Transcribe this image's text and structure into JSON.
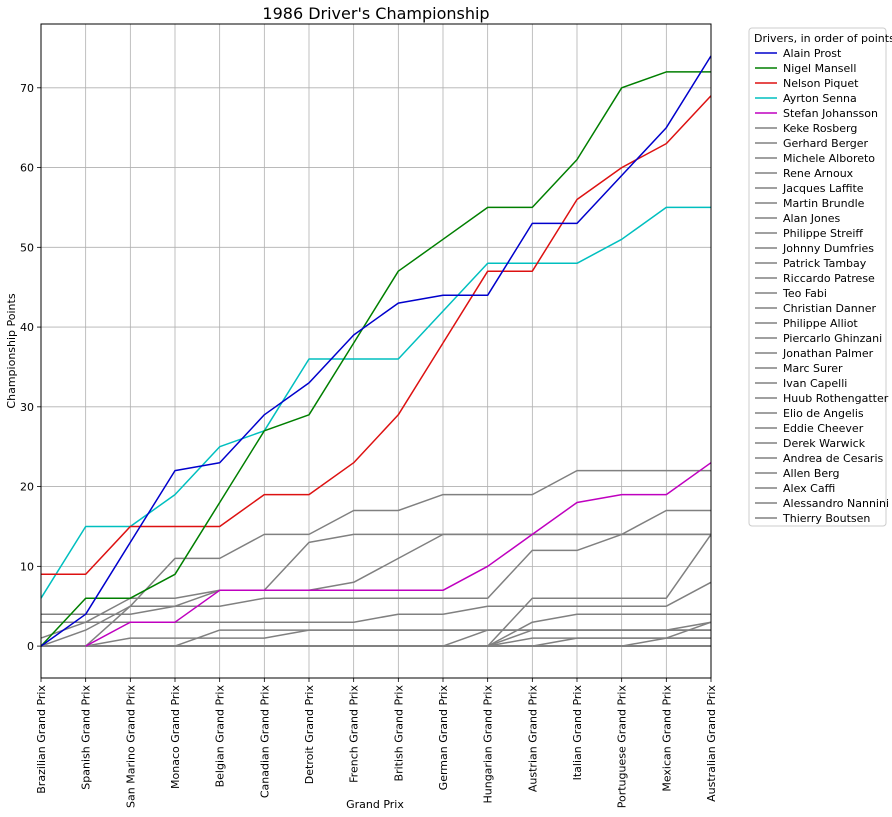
{
  "chart_data": {
    "type": "line",
    "title": "1986 Driver's Championship",
    "xlabel": "Grand Prix",
    "ylabel": "Championship Points",
    "ylim": [
      -4,
      78
    ],
    "yticks": [
      0,
      10,
      20,
      30,
      40,
      50,
      60,
      70
    ],
    "grid": true,
    "legend_title": "Drivers, in order of points",
    "legend_position": "outside-right",
    "categories": [
      "Brazilian Grand Prix",
      "Spanish Grand Prix",
      "San Marino Grand Prix",
      "Monaco Grand Prix",
      "Belgian Grand Prix",
      "Canadian Grand Prix",
      "Detroit Grand Prix",
      "French Grand Prix",
      "British Grand Prix",
      "German Grand Prix",
      "Hungarian Grand Prix",
      "Austrian Grand Prix",
      "Italian Grand Prix",
      "Portuguese Grand Prix",
      "Mexican Grand Prix",
      "Australian Grand Prix"
    ],
    "series": [
      {
        "name": "Alain Prost",
        "color": "#0000cc",
        "values": [
          0,
          4,
          13,
          22,
          23,
          29,
          33,
          39,
          43,
          44,
          44,
          53,
          53,
          59,
          65,
          74
        ]
      },
      {
        "name": "Nigel Mansell",
        "color": "#007f00",
        "values": [
          0,
          6,
          6,
          9,
          18,
          27,
          29,
          38,
          47,
          51,
          55,
          55,
          61,
          70,
          72,
          72
        ]
      },
      {
        "name": "Nelson Piquet",
        "color": "#dd1111",
        "values": [
          9,
          9,
          15,
          15,
          15,
          19,
          19,
          23,
          29,
          38,
          47,
          47,
          56,
          60,
          63,
          69
        ]
      },
      {
        "name": "Ayrton Senna",
        "color": "#00bfbf",
        "values": [
          6,
          15,
          15,
          19,
          25,
          27,
          36,
          36,
          36,
          42,
          48,
          48,
          48,
          51,
          55,
          55
        ]
      },
      {
        "name": "Stefan Johansson",
        "color": "#bf00bf",
        "values": [
          null,
          0,
          3,
          3,
          7,
          7,
          7,
          7,
          7,
          7,
          10,
          14,
          18,
          19,
          19,
          23
        ]
      },
      {
        "name": "Keke Rosberg",
        "color": "#808080",
        "values": [
          0,
          2,
          5,
          11,
          11,
          14,
          14,
          17,
          17,
          19,
          19,
          19,
          22,
          22,
          22,
          22
        ]
      },
      {
        "name": "Gerhard Berger",
        "color": "#808080",
        "values": [
          1,
          3,
          6,
          6,
          7,
          7,
          7,
          8,
          11,
          14,
          14,
          14,
          14,
          14,
          17,
          17
        ]
      },
      {
        "name": "Michele Alboreto",
        "color": "#808080",
        "values": [
          0,
          0,
          0,
          0,
          0,
          0,
          0,
          0,
          0,
          0,
          0,
          6,
          6,
          6,
          6,
          14
        ]
      },
      {
        "name": "Rene Arnoux",
        "color": "#808080",
        "values": [
          4,
          4,
          4,
          5,
          5,
          6,
          6,
          6,
          6,
          6,
          6,
          12,
          12,
          14,
          14,
          14
        ]
      },
      {
        "name": "Jacques Laffite",
        "color": "#808080",
        "values": [
          0,
          0,
          5,
          5,
          7,
          7,
          13,
          14,
          14,
          14,
          14,
          14,
          14,
          14,
          14,
          14
        ]
      },
      {
        "name": "Martin Brundle",
        "color": "#808080",
        "values": [
          3,
          3,
          3,
          3,
          3,
          3,
          3,
          3,
          4,
          4,
          5,
          5,
          5,
          5,
          5,
          8
        ]
      },
      {
        "name": "Alan Jones",
        "color": "#808080",
        "values": [
          0,
          0,
          0,
          0,
          0,
          0,
          0,
          0,
          0,
          0,
          0,
          3,
          4,
          4,
          4,
          4
        ]
      },
      {
        "name": "Philippe Streiff",
        "color": "#808080",
        "values": [
          0,
          0,
          0,
          0,
          0,
          0,
          0,
          0,
          0,
          0,
          0,
          0,
          1,
          1,
          1,
          3
        ]
      },
      {
        "name": "Johnny Dumfries",
        "color": "#808080",
        "values": [
          0,
          0,
          0,
          0,
          0,
          0,
          0,
          0,
          0,
          0,
          2,
          2,
          2,
          2,
          2,
          3
        ]
      },
      {
        "name": "Patrick Tambay",
        "color": "#808080",
        "values": [
          0,
          0,
          0,
          0,
          0,
          0,
          0,
          0,
          0,
          0,
          0,
          2,
          2,
          2,
          2,
          2
        ]
      },
      {
        "name": "Riccardo Patrese",
        "color": "#808080",
        "values": [
          0,
          0,
          1,
          1,
          1,
          1,
          2,
          2,
          2,
          2,
          2,
          2,
          2,
          2,
          2,
          2
        ]
      },
      {
        "name": "Teo Fabi",
        "color": "#808080",
        "values": [
          0,
          0,
          0,
          0,
          2,
          2,
          2,
          2,
          2,
          2,
          2,
          2,
          2,
          2,
          2,
          2
        ]
      },
      {
        "name": "Christian Danner",
        "color": "#808080",
        "values": [
          0,
          0,
          0,
          0,
          0,
          0,
          0,
          0,
          0,
          0,
          0,
          1,
          1,
          1,
          1,
          1
        ]
      },
      {
        "name": "Philippe Alliot",
        "color": "#808080",
        "values": [
          0,
          0,
          0,
          0,
          0,
          0,
          0,
          0,
          0,
          0,
          0,
          0,
          0,
          0,
          1,
          1
        ]
      },
      {
        "name": "Piercarlo Ghinzani",
        "color": "#808080",
        "values": [
          0,
          0,
          0,
          0,
          0,
          0,
          0,
          0,
          0,
          0,
          0,
          0,
          0,
          0,
          0,
          0
        ]
      },
      {
        "name": "Jonathan Palmer",
        "color": "#808080",
        "values": [
          0,
          0,
          0,
          0,
          0,
          0,
          0,
          0,
          0,
          0,
          0,
          0,
          0,
          0,
          0,
          0
        ]
      },
      {
        "name": "Marc Surer",
        "color": "#808080",
        "values": [
          0,
          0,
          0,
          0,
          0,
          0,
          0,
          0,
          0,
          0,
          0,
          0,
          0,
          0,
          0,
          0
        ]
      },
      {
        "name": "Ivan Capelli",
        "color": "#808080",
        "values": [
          0,
          0,
          0,
          0,
          0,
          0,
          0,
          0,
          0,
          0,
          0,
          0,
          0,
          0,
          0,
          0
        ]
      },
      {
        "name": "Huub Rothengatter",
        "color": "#808080",
        "values": [
          0,
          0,
          0,
          0,
          0,
          0,
          0,
          0,
          0,
          0,
          0,
          0,
          0,
          0,
          0,
          0
        ]
      },
      {
        "name": "Elio de Angelis",
        "color": "#808080",
        "values": [
          0,
          0,
          0,
          0,
          0,
          0,
          0,
          0,
          0,
          0,
          0,
          0,
          0,
          0,
          0,
          0
        ]
      },
      {
        "name": "Eddie Cheever",
        "color": "#808080",
        "values": [
          0,
          0,
          0,
          0,
          0,
          0,
          0,
          0,
          0,
          0,
          0,
          0,
          0,
          0,
          0,
          0
        ]
      },
      {
        "name": "Derek Warwick",
        "color": "#808080",
        "values": [
          0,
          0,
          0,
          0,
          0,
          0,
          0,
          0,
          0,
          0,
          0,
          0,
          0,
          0,
          0,
          0
        ]
      },
      {
        "name": "Andrea de Cesaris",
        "color": "#808080",
        "values": [
          0,
          0,
          0,
          0,
          0,
          0,
          0,
          0,
          0,
          0,
          0,
          0,
          0,
          0,
          0,
          0
        ]
      },
      {
        "name": "Allen Berg",
        "color": "#808080",
        "values": [
          0,
          0,
          0,
          0,
          0,
          0,
          0,
          0,
          0,
          0,
          0,
          0,
          0,
          0,
          0,
          0
        ]
      },
      {
        "name": "Alex Caffi",
        "color": "#808080",
        "values": [
          0,
          0,
          0,
          0,
          0,
          0,
          0,
          0,
          0,
          0,
          0,
          0,
          0,
          0,
          0,
          0
        ]
      },
      {
        "name": "Alessandro Nannini",
        "color": "#808080",
        "values": [
          0,
          0,
          0,
          0,
          0,
          0,
          0,
          0,
          0,
          0,
          0,
          0,
          0,
          0,
          0,
          0
        ]
      },
      {
        "name": "Thierry Boutsen",
        "color": "#808080",
        "values": [
          0,
          0,
          0,
          0,
          0,
          0,
          0,
          0,
          0,
          0,
          0,
          0,
          0,
          0,
          0,
          0
        ]
      }
    ]
  }
}
